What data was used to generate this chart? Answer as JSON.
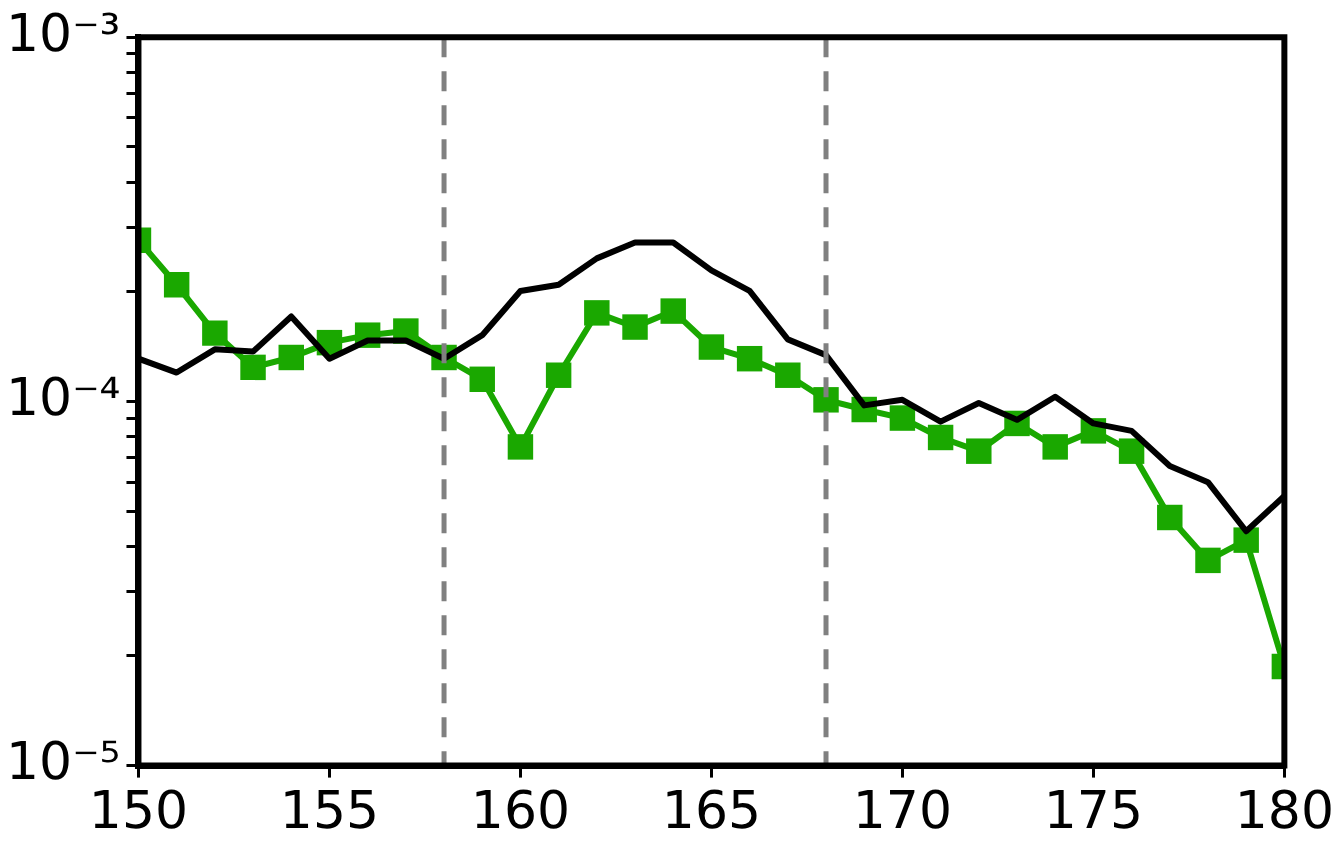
{
  "chart_data": {
    "type": "line",
    "log": "y",
    "grid": false,
    "legend": false,
    "xlim": [
      150,
      180
    ],
    "xticks": [
      150,
      155,
      160,
      165,
      170,
      175,
      180
    ],
    "ylim": [
      1e-05,
      0.001
    ],
    "yticks": [
      {
        "value": 1e-05,
        "label": "10⁻⁵"
      },
      {
        "value": 2e-05,
        "label": null
      },
      {
        "value": 3e-05,
        "label": null
      },
      {
        "value": 4e-05,
        "label": null
      },
      {
        "value": 5e-05,
        "label": null
      },
      {
        "value": 6e-05,
        "label": null
      },
      {
        "value": 7e-05,
        "label": null
      },
      {
        "value": 8e-05,
        "label": null
      },
      {
        "value": 9e-05,
        "label": null
      },
      {
        "value": 0.0001,
        "label": "10⁻⁴"
      },
      {
        "value": 0.0002,
        "label": null
      },
      {
        "value": 0.0003,
        "label": null
      },
      {
        "value": 0.0004,
        "label": null
      },
      {
        "value": 0.0005,
        "label": null
      },
      {
        "value": 0.0006,
        "label": null
      },
      {
        "value": 0.0007,
        "label": null
      },
      {
        "value": 0.0008,
        "label": null
      },
      {
        "value": 0.0009,
        "label": null
      },
      {
        "value": 0.001,
        "label": "10⁻³"
      }
    ],
    "x": [
      150,
      151,
      152,
      153,
      154,
      155,
      156,
      157,
      158,
      159,
      160,
      161,
      162,
      163,
      164,
      165,
      166,
      167,
      168,
      169,
      170,
      171,
      172,
      173,
      174,
      175,
      176,
      177,
      178,
      179,
      180
    ],
    "series": [
      {
        "color": "#000000",
        "marker": "none",
        "line_style": "solid",
        "values": [
          0.000131,
          0.00012,
          0.000139,
          0.000137,
          0.000171,
          0.000131,
          0.000147,
          0.000147,
          0.000131,
          0.000152,
          0.000201,
          0.000209,
          0.000247,
          0.000273,
          0.000273,
          0.000229,
          0.000201,
          0.000148,
          0.000134,
          9.75e-05,
          0.000101,
          8.8e-05,
          9.9e-05,
          8.9e-05,
          0.000103,
          8.7e-05,
          8.3e-05,
          6.65e-05,
          6e-05,
          4.4e-05,
          5.5e-05
        ]
      },
      {
        "color": "#1aa800",
        "marker": "square",
        "line_style": "solid",
        "values": [
          0.000277,
          0.000209,
          0.000154,
          0.000124,
          0.000132,
          0.000145,
          0.000152,
          0.000156,
          0.000132,
          0.000115,
          7.5e-05,
          0.000118,
          0.000175,
          0.00016,
          0.000177,
          0.000141,
          0.000131,
          0.000118,
          0.000101,
          9.5e-05,
          9e-05,
          7.96e-05,
          7.3e-05,
          8.7e-05,
          7.5e-05,
          8.3e-05,
          7.3e-05,
          4.8e-05,
          3.66e-05,
          4.16e-05,
          1.87e-05
        ]
      }
    ],
    "ref_lines": [
      {
        "axis": "x",
        "value": 158,
        "color": "#808080",
        "line_style": "dashed"
      },
      {
        "axis": "x",
        "value": 168,
        "color": "#808080",
        "line_style": "dashed"
      }
    ]
  }
}
